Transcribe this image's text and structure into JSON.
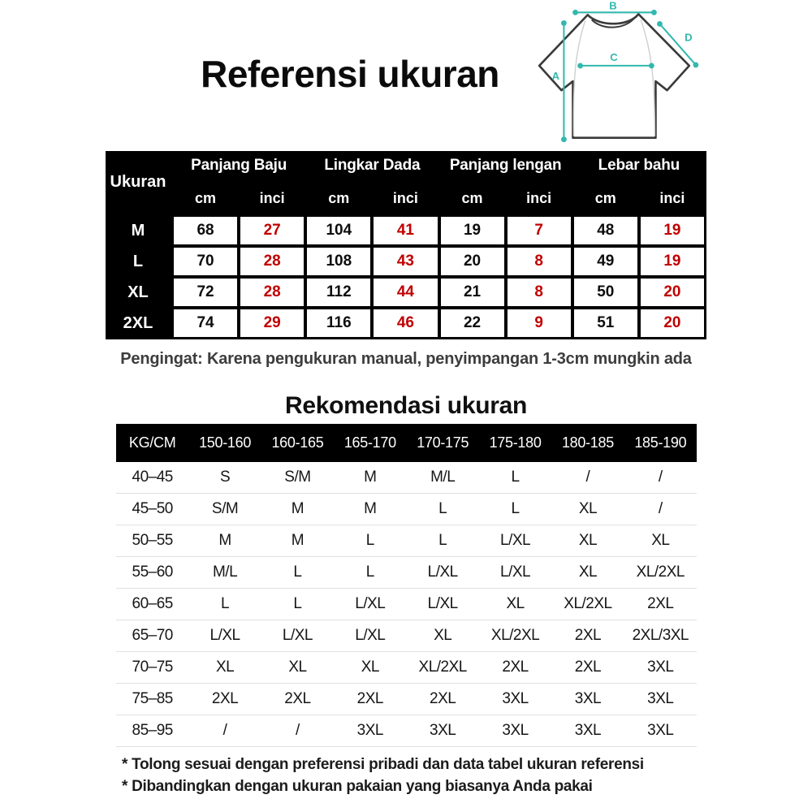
{
  "page": {
    "title": "Referensi ukuran",
    "measure_note": "Pengingat: Karena pengukuran manual, penyimpangan 1-3cm mungkin ada",
    "recommendation_title": "Rekomendasi ukuran",
    "footnotes": [
      "* Tolong sesuai dengan preferensi pribadi dan data tabel ukuran referensi",
      "* Dibandingkan dengan ukuran pakaian yang biasanya Anda pakai"
    ]
  },
  "colors": {
    "accent_teal": "#33b8ae",
    "inci_red": "#c00000",
    "header_bg": "#000000",
    "row_divider": "#e0e0e0"
  },
  "diagram": {
    "description": "oversized t-shirt with measurement lines",
    "labels": {
      "length": "A",
      "shoulder_width": "B",
      "chest": "C",
      "sleeve": "D"
    }
  },
  "size_table": {
    "corner_label": "Ukuran",
    "groups": [
      "Panjang Baju",
      "Lingkar Dada",
      "Panjang lengan",
      "Lebar bahu"
    ],
    "unit_labels": [
      "cm",
      "inci"
    ],
    "rows": [
      {
        "size": "M",
        "values": [
          "68",
          "27",
          "104",
          "41",
          "19",
          "7",
          "48",
          "19"
        ]
      },
      {
        "size": "L",
        "values": [
          "70",
          "28",
          "108",
          "43",
          "20",
          "8",
          "49",
          "19"
        ]
      },
      {
        "size": "XL",
        "values": [
          "72",
          "28",
          "112",
          "44",
          "21",
          "8",
          "50",
          "20"
        ]
      },
      {
        "size": "2XL",
        "values": [
          "74",
          "29",
          "116",
          "46",
          "22",
          "9",
          "51",
          "20"
        ]
      }
    ]
  },
  "recommendation_table": {
    "header": [
      "KG/CM",
      "150-160",
      "160-165",
      "165-170",
      "170-175",
      "175-180",
      "180-185",
      "185-190"
    ],
    "rows": [
      {
        "kg": "40–45",
        "values": [
          "S",
          "S/M",
          "M",
          "M/L",
          "L",
          "/",
          "/"
        ]
      },
      {
        "kg": "45–50",
        "values": [
          "S/M",
          "M",
          "M",
          "L",
          "L",
          "XL",
          "/"
        ]
      },
      {
        "kg": "50–55",
        "values": [
          "M",
          "M",
          "L",
          "L",
          "L/XL",
          "XL",
          "XL"
        ]
      },
      {
        "kg": "55–60",
        "values": [
          "M/L",
          "L",
          "L",
          "L/XL",
          "L/XL",
          "XL",
          "XL/2XL"
        ]
      },
      {
        "kg": "60–65",
        "values": [
          "L",
          "L",
          "L/XL",
          "L/XL",
          "XL",
          "XL/2XL",
          "2XL"
        ]
      },
      {
        "kg": "65–70",
        "values": [
          "L/XL",
          "L/XL",
          "L/XL",
          "XL",
          "XL/2XL",
          "2XL",
          "2XL/3XL"
        ]
      },
      {
        "kg": "70–75",
        "values": [
          "XL",
          "XL",
          "XL",
          "XL/2XL",
          "2XL",
          "2XL",
          "3XL"
        ]
      },
      {
        "kg": "75–85",
        "values": [
          "2XL",
          "2XL",
          "2XL",
          "2XL",
          "3XL",
          "3XL",
          "3XL"
        ]
      },
      {
        "kg": "85–95",
        "values": [
          "/",
          "/",
          "3XL",
          "3XL",
          "3XL",
          "3XL",
          "3XL"
        ]
      }
    ]
  }
}
